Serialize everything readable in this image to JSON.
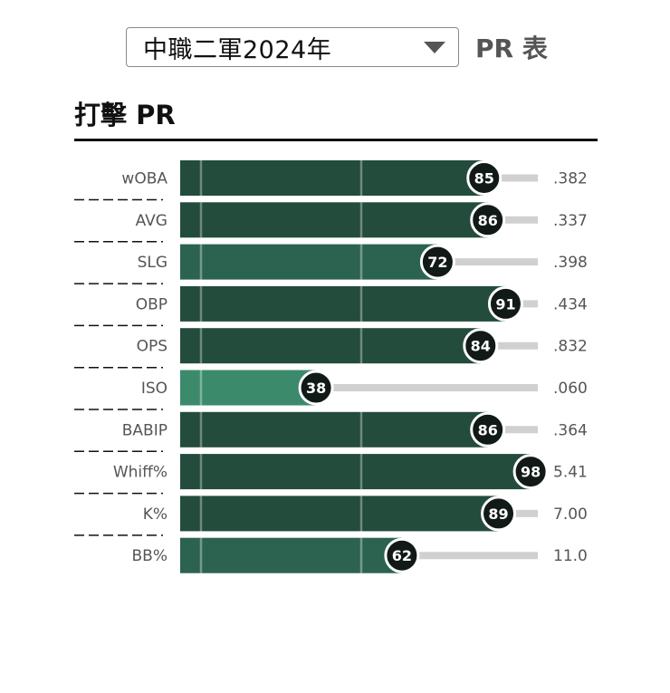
{
  "selector": {
    "selected": "中職二軍2024年"
  },
  "header": {
    "pr_table_label": "PR 表"
  },
  "section": {
    "title": "打擊 PR"
  },
  "chart_data": {
    "type": "bar",
    "orientation": "horizontal",
    "title": "打擊 PR",
    "xlim": [
      0,
      100
    ],
    "categories": [
      "wOBA",
      "AVG",
      "SLG",
      "OBP",
      "OPS",
      "ISO",
      "BABIP",
      "Whiff%",
      "K%",
      "BB%"
    ],
    "values": [
      85,
      86,
      72,
      91,
      84,
      38,
      86,
      98,
      89,
      62
    ],
    "stat_values": [
      ".382",
      ".337",
      ".398",
      ".434",
      ".832",
      ".060",
      ".364",
      "5.41",
      "7.00",
      "11.0"
    ],
    "colors": {
      "bar_dark": "#234c3c",
      "bar_mid": "#2c6350",
      "bar_light": "#3c8a6c",
      "circle": "#111a16",
      "track": "#d0d0d0"
    }
  }
}
